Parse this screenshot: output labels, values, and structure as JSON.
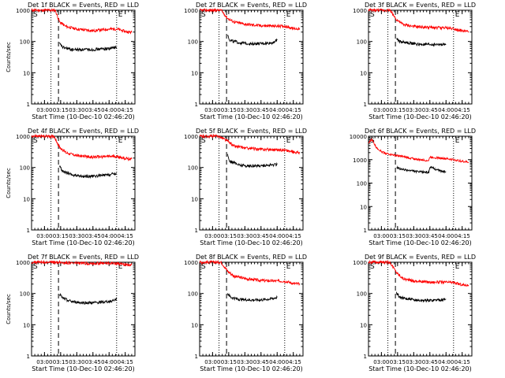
{
  "colors": {
    "events": "#000000",
    "lld": "#ff0000",
    "axes": "#000000",
    "background": "#ffffff"
  },
  "chart_data": [
    {
      "type": "line",
      "title": "Det 1f BLACK = Events, RED = LLD",
      "ylabel": "Counts/sec",
      "xlabel": "Start Time (10-Dec-10 02:46:20)",
      "yscale": "log",
      "ylim": [
        1,
        1000
      ],
      "yticks": [
        1,
        10,
        100,
        1000
      ],
      "xlim": [
        "02:48",
        "04:24"
      ],
      "xticks": [
        "03:00",
        "03:15",
        "03:30",
        "03:45",
        "04:00",
        "04:15"
      ],
      "start_marker": "S",
      "end_marker": "E",
      "dotted_lines": [
        "03:06",
        "04:07"
      ],
      "dashed_line": "03:13",
      "series": [
        {
          "name": "LLD",
          "color": "red",
          "x": [
            "02:48",
            "03:10",
            "03:14",
            "03:20",
            "03:30",
            "03:45",
            "04:00",
            "04:07",
            "04:15",
            "04:21"
          ],
          "y": [
            1000,
            1000,
            420,
            300,
            250,
            220,
            250,
            250,
            210,
            195
          ]
        },
        {
          "name": "Events",
          "color": "black",
          "x": [
            "03:14",
            "03:17",
            "03:25",
            "03:35",
            "03:45",
            "04:00",
            "04:07"
          ],
          "y": [
            85,
            65,
            55,
            55,
            55,
            60,
            65
          ]
        }
      ]
    },
    {
      "type": "line",
      "title": "Det 2f BLACK = Events, RED = LLD",
      "ylabel": "",
      "xlabel": "Start Time (10-Dec-10 02:46:20)",
      "yscale": "log",
      "ylim": [
        1,
        1000
      ],
      "yticks": [
        1,
        10,
        100,
        1000
      ],
      "xlim": [
        "02:48",
        "04:24"
      ],
      "xticks": [
        "03:00",
        "03:15",
        "03:30",
        "03:45",
        "04:00",
        "04:15"
      ],
      "start_marker": "S",
      "end_marker": "E",
      "dotted_lines": [
        "03:06",
        "04:07"
      ],
      "dashed_line": "03:13",
      "series": [
        {
          "name": "LLD",
          "color": "red",
          "x": [
            "02:48",
            "03:08",
            "03:14",
            "03:20",
            "03:30",
            "03:45",
            "04:00",
            "04:07",
            "04:15",
            "04:21"
          ],
          "y": [
            1000,
            1000,
            550,
            420,
            360,
            320,
            310,
            310,
            260,
            255
          ]
        },
        {
          "name": "Events",
          "color": "black",
          "x": [
            "03:14",
            "03:16",
            "03:25",
            "03:35",
            "03:45",
            "03:55",
            "04:00"
          ],
          "y": [
            160,
            110,
            90,
            85,
            85,
            90,
            110
          ]
        }
      ]
    },
    {
      "type": "line",
      "title": "Det 3f BLACK = Events, RED = LLD",
      "ylabel": "",
      "xlabel": "Start Time (10-Dec-10 02:46:20)",
      "yscale": "log",
      "ylim": [
        1,
        1000
      ],
      "yticks": [
        1,
        10,
        100,
        1000
      ],
      "xlim": [
        "02:48",
        "04:24"
      ],
      "xticks": [
        "03:00",
        "03:15",
        "03:30",
        "03:45",
        "04:00",
        "04:15"
      ],
      "start_marker": "S",
      "end_marker": "E",
      "dotted_lines": [
        "03:06",
        "04:07"
      ],
      "dashed_line": "03:13",
      "series": [
        {
          "name": "LLD",
          "color": "red",
          "x": [
            "02:48",
            "03:08",
            "03:14",
            "03:20",
            "03:30",
            "03:45",
            "04:00",
            "04:07",
            "04:15",
            "04:21"
          ],
          "y": [
            1000,
            1000,
            500,
            350,
            300,
            280,
            270,
            260,
            215,
            210
          ]
        },
        {
          "name": "Events",
          "color": "black",
          "x": [
            "03:14",
            "03:17",
            "03:25",
            "03:35",
            "03:45",
            "04:00"
          ],
          "y": [
            125,
            100,
            90,
            80,
            80,
            80
          ]
        }
      ]
    },
    {
      "type": "line",
      "title": "Det 4f BLACK = Events, RED = LLD",
      "ylabel": "Counts/sec",
      "xlabel": "Start Time (10-Dec-10 02:46:20)",
      "yscale": "log",
      "ylim": [
        1,
        1000
      ],
      "yticks": [
        1,
        10,
        100,
        1000
      ],
      "xlim": [
        "02:48",
        "04:24"
      ],
      "xticks": [
        "03:00",
        "03:15",
        "03:30",
        "03:45",
        "04:00",
        "04:15"
      ],
      "start_marker": "S",
      "end_marker": "E",
      "dotted_lines": [
        "03:06",
        "04:07"
      ],
      "dashed_line": "03:13",
      "series": [
        {
          "name": "LLD",
          "color": "red",
          "x": [
            "02:48",
            "03:09",
            "03:14",
            "03:20",
            "03:30",
            "03:45",
            "04:00",
            "04:07",
            "04:15",
            "04:21"
          ],
          "y": [
            1000,
            1000,
            440,
            300,
            240,
            215,
            225,
            225,
            195,
            185
          ]
        },
        {
          "name": "Events",
          "color": "black",
          "x": [
            "03:14",
            "03:17",
            "03:25",
            "03:35",
            "03:45",
            "04:00",
            "04:07"
          ],
          "y": [
            110,
            75,
            58,
            52,
            52,
            58,
            65
          ]
        }
      ]
    },
    {
      "type": "line",
      "title": "Det 5f BLACK = Events, RED = LLD",
      "ylabel": "",
      "xlabel": "Start Time (10-Dec-10 02:46:20)",
      "yscale": "log",
      "ylim": [
        1,
        1000
      ],
      "yticks": [
        1,
        10,
        100,
        1000
      ],
      "xlim": [
        "02:48",
        "04:24"
      ],
      "xticks": [
        "03:00",
        "03:15",
        "03:30",
        "03:45",
        "04:00",
        "04:15"
      ],
      "start_marker": "S",
      "end_marker": "E",
      "dotted_lines": [
        "03:06",
        "04:07"
      ],
      "dashed_line": "03:13",
      "series": [
        {
          "name": "LLD",
          "color": "red",
          "x": [
            "02:48",
            "03:06",
            "03:14",
            "03:20",
            "03:30",
            "03:45",
            "04:00",
            "04:07",
            "04:15",
            "04:21"
          ],
          "y": [
            1000,
            1000,
            700,
            480,
            420,
            380,
            370,
            360,
            310,
            300
          ]
        },
        {
          "name": "Events",
          "color": "black",
          "x": [
            "03:14",
            "03:16",
            "03:25",
            "03:35",
            "03:45",
            "03:55",
            "04:00"
          ],
          "y": [
            250,
            160,
            120,
            110,
            115,
            120,
            125
          ]
        }
      ]
    },
    {
      "type": "line",
      "title": "Det 6f BLACK = Events, RED = LLD",
      "ylabel": "",
      "xlabel": "Start Time (10-Dec-10 02:46:20)",
      "yscale": "log",
      "ylim": [
        1,
        10000
      ],
      "yticks": [
        1,
        10,
        100,
        1000,
        10000
      ],
      "xlim": [
        "02:48",
        "04:24"
      ],
      "xticks": [
        "03:00",
        "03:15",
        "03:30",
        "03:45",
        "04:00",
        "04:15"
      ],
      "start_marker": "S",
      "end_marker": "E",
      "dotted_lines": [
        "03:06",
        "04:07"
      ],
      "dashed_line": "03:13",
      "series": [
        {
          "name": "LLD",
          "color": "red",
          "x": [
            "02:48",
            "02:51",
            "02:55",
            "03:00",
            "03:05",
            "03:14",
            "03:25",
            "03:35",
            "03:44",
            "03:45",
            "04:00",
            "04:07",
            "04:15",
            "04:21"
          ],
          "y": [
            5000,
            7500,
            3500,
            2200,
            1800,
            1500,
            1200,
            1000,
            920,
            1300,
            1100,
            1000,
            850,
            780
          ]
        },
        {
          "name": "Events",
          "color": "black",
          "x": [
            "03:14",
            "03:17",
            "03:25",
            "03:35",
            "03:44",
            "03:45",
            "03:55",
            "04:00"
          ],
          "y": [
            480,
            400,
            350,
            300,
            290,
            480,
            330,
            300
          ]
        }
      ]
    },
    {
      "type": "line",
      "title": "Det 7f BLACK = Events, RED = LLD",
      "ylabel": "Counts/sec",
      "xlabel": "Start Time (10-Dec-10 02:46:20)",
      "yscale": "log",
      "ylim": [
        1,
        1000
      ],
      "yticks": [
        1,
        10,
        100,
        1000
      ],
      "xlim": [
        "02:48",
        "04:24"
      ],
      "xticks": [
        "03:00",
        "03:15",
        "03:30",
        "03:45",
        "04:00",
        "04:15"
      ],
      "start_marker": "S",
      "end_marker": "E",
      "dotted_lines": [
        "03:06",
        "04:07"
      ],
      "dashed_line": "03:13",
      "series": [
        {
          "name": "LLD",
          "color": "red",
          "x": [
            "02:48",
            "03:10",
            "03:14",
            "03:30",
            "03:45",
            "04:00",
            "04:07",
            "04:15",
            "04:21"
          ],
          "y": [
            1000,
            1000,
            990,
            930,
            920,
            930,
            920,
            850,
            820
          ]
        },
        {
          "name": "Events",
          "color": "black",
          "x": [
            "03:14",
            "03:17",
            "03:25",
            "03:35",
            "03:45",
            "04:00",
            "04:07"
          ],
          "y": [
            95,
            70,
            55,
            50,
            50,
            55,
            65
          ]
        }
      ]
    },
    {
      "type": "line",
      "title": "Det 8f BLACK = Events, RED = LLD",
      "ylabel": "",
      "xlabel": "Start Time (10-Dec-10 02:46:20)",
      "yscale": "log",
      "ylim": [
        1,
        1000
      ],
      "yticks": [
        1,
        10,
        100,
        1000
      ],
      "xlim": [
        "02:48",
        "04:24"
      ],
      "xticks": [
        "03:00",
        "03:15",
        "03:30",
        "03:45",
        "04:00",
        "04:15"
      ],
      "start_marker": "S",
      "end_marker": "E",
      "dotted_lines": [
        "03:06",
        "04:07"
      ],
      "dashed_line": "03:13",
      "series": [
        {
          "name": "LLD",
          "color": "red",
          "x": [
            "02:48",
            "03:08",
            "03:14",
            "03:20",
            "03:30",
            "03:45",
            "04:00",
            "04:07",
            "04:15",
            "04:21"
          ],
          "y": [
            1000,
            1000,
            520,
            360,
            300,
            260,
            250,
            250,
            210,
            200
          ]
        },
        {
          "name": "Events",
          "color": "black",
          "x": [
            "03:14",
            "03:17",
            "03:25",
            "03:35",
            "03:45",
            "03:55",
            "04:00"
          ],
          "y": [
            100,
            75,
            65,
            62,
            62,
            68,
            75
          ]
        }
      ]
    },
    {
      "type": "line",
      "title": "Det 9f BLACK = Events, RED = LLD",
      "ylabel": "",
      "xlabel": "Start Time (10-Dec-10 02:46:20)",
      "yscale": "log",
      "ylim": [
        1,
        1000
      ],
      "yticks": [
        1,
        10,
        100,
        1000
      ],
      "xlim": [
        "02:48",
        "04:24"
      ],
      "xticks": [
        "03:00",
        "03:15",
        "03:30",
        "03:45",
        "04:00",
        "04:15"
      ],
      "start_marker": "S",
      "end_marker": "E",
      "dotted_lines": [
        "03:06",
        "04:07"
      ],
      "dashed_line": "03:13",
      "series": [
        {
          "name": "LLD",
          "color": "red",
          "x": [
            "02:48",
            "03:08",
            "03:14",
            "03:20",
            "03:30",
            "03:45",
            "04:00",
            "04:07",
            "04:15",
            "04:21"
          ],
          "y": [
            1000,
            1000,
            470,
            300,
            250,
            230,
            230,
            225,
            190,
            185
          ]
        },
        {
          "name": "Events",
          "color": "black",
          "x": [
            "03:14",
            "03:17",
            "03:25",
            "03:35",
            "03:45",
            "04:00"
          ],
          "y": [
            105,
            75,
            65,
            60,
            60,
            65
          ]
        }
      ]
    }
  ]
}
